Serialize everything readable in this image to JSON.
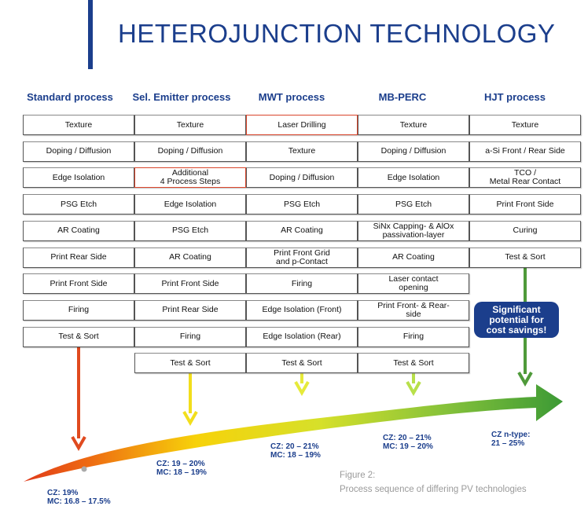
{
  "title": "HETEROJUNCTION TECHNOLOGY",
  "columns": [
    {
      "header": "Standard process",
      "steps": [
        "Texture",
        "Doping / Diffusion",
        "Edge Isolation",
        "PSG Etch",
        "AR Coating",
        "Print Rear Side",
        "Print Front Side",
        "Firing",
        "Test & Sort"
      ],
      "arrow_color": "#e04a1f",
      "result": "CZ: 19%\nMC: 16.8 – 17.5%"
    },
    {
      "header": "Sel. Emitter process",
      "steps": [
        "Texture",
        "Doping / Diffusion",
        "Additional\n4 Process Steps",
        "Edge Isolation",
        "PSG Etch",
        "AR Coating",
        "Print Front Side",
        "Print Rear Side",
        "Firing",
        "Test & Sort"
      ],
      "highlight_steps": [
        2
      ],
      "arrow_color": "#f2de1c",
      "result": "CZ: 19 – 20%\nMC: 18 – 19%"
    },
    {
      "header": "MWT process",
      "steps": [
        "Laser Drilling",
        "Texture",
        "Doping / Diffusion",
        "PSG Etch",
        "AR Coating",
        "Print Front Grid\nand p-Contact",
        "Firing",
        "Edge Isolation (Front)",
        "Edge Isolation (Rear)",
        "Test & Sort"
      ],
      "highlight_steps": [
        0
      ],
      "arrow_color": "#e6ea3a",
      "result": "CZ: 20 – 21%\nMC: 18 – 19%"
    },
    {
      "header": "MB-PERC",
      "steps": [
        "Texture",
        "Doping / Diffusion",
        "Edge Isolation",
        "PSG Etch",
        "SiNx Capping- & AlOx\npassivation-layer",
        "AR Coating",
        "Laser contact\nopening",
        "Print Front- & Rear-\nside",
        "Firing",
        "Test & Sort"
      ],
      "arrow_color": "#b8e04a",
      "result": "CZ: 20 – 21%\nMC: 19 – 20%"
    },
    {
      "header": "HJT process",
      "steps": [
        "Texture",
        "a-Si Front / Rear Side",
        "TCO /\nMetal Rear Contact",
        "Print Front Side",
        "Curing",
        "Test & Sort"
      ],
      "arrow_color": "#4f9a3a",
      "result": "CZ n-type:\n21 – 25%"
    }
  ],
  "callout": "Significant\npotential for\ncost savings!",
  "caption": {
    "line1": "Figure 2:",
    "line2": "Process sequence of differing PV technologies"
  },
  "colors": {
    "brand_blue": "#1b3e8c",
    "highlight_border_red": "#d9452b",
    "trend_start": "#e03a1a",
    "trend_mid": "#f7d20a",
    "trend_end": "#3c9a35"
  }
}
